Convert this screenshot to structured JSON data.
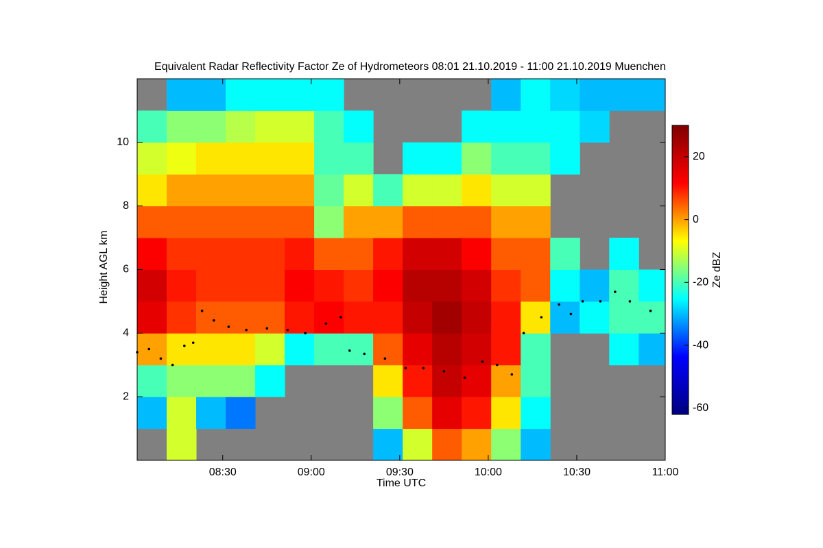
{
  "chart_data": {
    "type": "heatmap",
    "title": "Equivalent Radar Reflectivity Factor Ze of Hydrometeors   08:01 21.10.2019 - 11:00 21.10.2019 Muenchen",
    "xlabel": "Time UTC",
    "ylabel": "Height AGL km",
    "colorbar_label": "Ze dBZ",
    "background": "#808080",
    "colorscale": [
      "#00007f",
      "#0000ff",
      "#00ffff",
      "#ffff00",
      "#ff0000",
      "#7f0000"
    ],
    "xbins": [
      481,
      491,
      501,
      511,
      521,
      531,
      541,
      551,
      561,
      571,
      581,
      591,
      601,
      611,
      621,
      631,
      641,
      651,
      660
    ],
    "ybins": [
      0,
      1,
      2,
      3,
      4,
      5,
      6,
      7,
      8,
      9,
      10,
      11,
      12
    ],
    "z": [
      [
        null,
        -10,
        null,
        null,
        null,
        null,
        null,
        null,
        -30,
        -10,
        5,
        0,
        -15,
        -30,
        null,
        null,
        null,
        null
      ],
      [
        -30,
        -10,
        -30,
        -35,
        null,
        null,
        null,
        null,
        -15,
        5,
        15,
        10,
        -5,
        -25,
        null,
        null,
        null,
        null
      ],
      [
        -20,
        -15,
        -15,
        -15,
        -25,
        null,
        null,
        null,
        -5,
        10,
        20,
        15,
        0,
        -20,
        null,
        null,
        null,
        null
      ],
      [
        0,
        -5,
        -5,
        -5,
        -10,
        -25,
        -20,
        -20,
        5,
        15,
        22,
        18,
        10,
        -20,
        null,
        null,
        -25,
        -30
      ],
      [
        15,
        8,
        5,
        5,
        5,
        10,
        12,
        10,
        10,
        20,
        25,
        20,
        10,
        -5,
        -30,
        -25,
        -20,
        -20
      ],
      [
        18,
        10,
        8,
        8,
        8,
        12,
        10,
        8,
        12,
        22,
        22,
        18,
        8,
        5,
        -25,
        -30,
        -20,
        -25
      ],
      [
        12,
        8,
        8,
        8,
        8,
        10,
        5,
        5,
        10,
        18,
        18,
        12,
        5,
        5,
        -20,
        null,
        -25,
        null
      ],
      [
        5,
        5,
        5,
        5,
        5,
        5,
        -15,
        0,
        0,
        5,
        5,
        5,
        0,
        0,
        null,
        null,
        null,
        null
      ],
      [
        -5,
        0,
        0,
        0,
        0,
        0,
        -18,
        -10,
        -20,
        -10,
        -10,
        -5,
        -10,
        -10,
        null,
        null,
        null,
        null
      ],
      [
        -10,
        -8,
        -5,
        -5,
        -5,
        -5,
        -20,
        -20,
        null,
        -25,
        -25,
        -15,
        -20,
        -20,
        -25,
        null,
        null,
        null
      ],
      [
        -20,
        -15,
        -15,
        -12,
        -10,
        -10,
        -20,
        -25,
        null,
        null,
        null,
        -25,
        -25,
        -25,
        -25,
        -28,
        null,
        null
      ],
      [
        null,
        -30,
        -30,
        -25,
        -25,
        -25,
        -25,
        null,
        null,
        null,
        null,
        null,
        -30,
        -25,
        -28,
        -30,
        -30,
        -30
      ]
    ],
    "cloud_base": {
      "color": "#000000",
      "x": [
        481,
        485,
        489,
        493,
        497,
        500,
        503,
        507,
        512,
        518,
        525,
        532,
        538,
        545,
        550,
        553,
        558,
        565,
        572,
        578,
        585,
        592,
        598,
        603,
        608,
        612,
        618,
        624,
        628,
        632,
        638,
        643,
        648,
        655
      ],
      "y": [
        3.4,
        3.5,
        3.2,
        3.0,
        3.6,
        3.7,
        4.7,
        4.4,
        4.2,
        4.1,
        4.15,
        4.1,
        4.0,
        4.3,
        4.5,
        3.45,
        3.35,
        3.2,
        2.9,
        2.9,
        2.8,
        2.6,
        3.1,
        3.0,
        2.7,
        4.0,
        4.5,
        4.9,
        4.6,
        5.0,
        5.0,
        5.3,
        5.0,
        4.7
      ]
    },
    "xlim": [
      481,
      660
    ],
    "xticks": [
      {
        "value": 510,
        "label": "08:30"
      },
      {
        "value": 540,
        "label": "09:00"
      },
      {
        "value": 570,
        "label": "09:30"
      },
      {
        "value": 600,
        "label": "10:00"
      },
      {
        "value": 630,
        "label": "10:30"
      },
      {
        "value": 660,
        "label": "11:00"
      }
    ],
    "ylim": [
      0,
      12
    ],
    "yticks": [
      2,
      4,
      6,
      8,
      10
    ],
    "zlim": [
      -62,
      30
    ],
    "zticks": [
      -60,
      -40,
      -20,
      0,
      20
    ]
  }
}
